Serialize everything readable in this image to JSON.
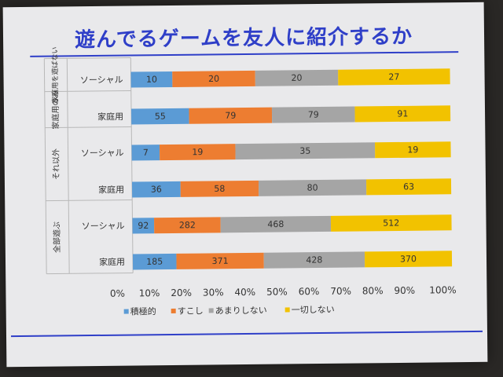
{
  "title": "遊んでるゲームを友人に紹介するか",
  "colors": {
    "title": "#2f3fc8",
    "series": [
      "#5b9bd5",
      "#ed7d31",
      "#a5a5a5",
      "#f2c200"
    ]
  },
  "chart_data": {
    "type": "bar",
    "orientation": "horizontal",
    "stacked": "percent",
    "groups": [
      {
        "label": "家庭用を遊ばない",
        "categories": [
          "ソーシャル"
        ]
      },
      {
        "label": "家庭用のみ",
        "categories": [
          "家庭用"
        ]
      },
      {
        "label": "それ以外",
        "categories": [
          "ソーシャル",
          "家庭用"
        ]
      },
      {
        "label": "全部遊ぶ",
        "categories": [
          "ソーシャル",
          "家庭用"
        ]
      }
    ],
    "categories": [
      "ソーシャル",
      "家庭用",
      "ソーシャル",
      "家庭用",
      "ソーシャル",
      "家庭用"
    ],
    "series": [
      {
        "name": "積極的",
        "values": [
          10,
          55,
          7,
          36,
          92,
          185
        ]
      },
      {
        "name": "すこし",
        "values": [
          20,
          79,
          19,
          58,
          282,
          371
        ]
      },
      {
        "name": "あまりしない",
        "values": [
          20,
          79,
          35,
          80,
          468,
          428
        ]
      },
      {
        "name": "一切しない",
        "values": [
          27,
          91,
          19,
          63,
          512,
          370
        ]
      }
    ],
    "xticks": [
      "0%",
      "10%",
      "20%",
      "30%",
      "40%",
      "50%",
      "60%",
      "70%",
      "80%",
      "90%",
      "100%"
    ],
    "xlim": [
      0,
      100
    ],
    "legend_position": "bottom",
    "grid": false
  }
}
